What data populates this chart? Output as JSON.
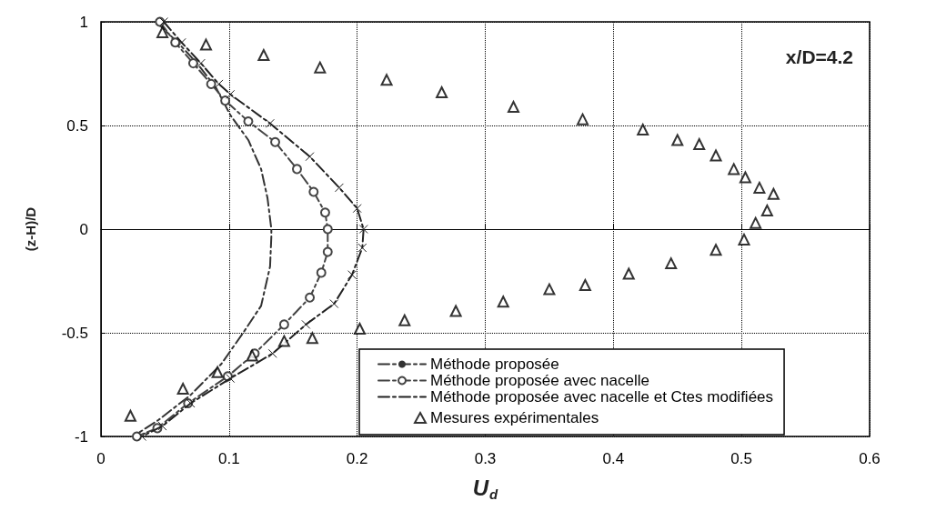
{
  "chart_data": {
    "type": "line",
    "xlabel": "U$_{d}$",
    "ylabel": "(z-H)/D",
    "annotations": [
      "x/D=4.2"
    ],
    "xlim": [
      0,
      0.6
    ],
    "xticks": [
      0,
      0.1,
      0.2,
      0.3,
      0.4,
      0.5,
      0.6
    ],
    "ylim": [
      -1,
      1
    ],
    "yticks": [
      -1,
      -0.5,
      0,
      0.5,
      1
    ],
    "grid": true,
    "legend": "bottom right",
    "series": [
      {
        "name": "Méthode proposée",
        "color": "#333333",
        "marker": "none",
        "line_style": "dashed",
        "x": [
          0.043,
          0.06,
          0.075,
          0.09,
          0.101,
          0.115,
          0.125,
          0.13,
          0.133,
          0.133,
          0.132,
          0.125,
          0.111,
          0.094,
          0.07,
          0.045,
          0.025
        ],
        "values": [
          1,
          0.9,
          0.8,
          0.68,
          0.55,
          0.43,
          0.29,
          0.15,
          0,
          -0.035,
          -0.18,
          -0.37,
          -0.5,
          -0.65,
          -0.8,
          -0.92,
          -1
        ]
      },
      {
        "name": "Méthode proposée avec nacelle",
        "color": "#444444",
        "marker": "circle",
        "line_style": "dashed",
        "x": [
          0.046,
          0.058,
          0.072,
          0.086,
          0.097,
          0.115,
          0.136,
          0.153,
          0.166,
          0.175,
          0.177,
          0.177,
          0.172,
          0.163,
          0.143,
          0.12,
          0.099,
          0.068,
          0.044,
          0.028
        ],
        "values": [
          1,
          0.9,
          0.8,
          0.7,
          0.62,
          0.52,
          0.42,
          0.29,
          0.18,
          0.08,
          0,
          -0.11,
          -0.21,
          -0.33,
          -0.46,
          -0.6,
          -0.71,
          -0.84,
          -0.96,
          -1
        ]
      },
      {
        "name": "Méthode proposée avec nacelle et Ctes modifiées",
        "color": "#222222",
        "marker": "cross",
        "line_style": "dashed",
        "x": [
          0.049,
          0.063,
          0.078,
          0.092,
          0.101,
          0.132,
          0.163,
          0.186,
          0.2,
          0.205,
          0.204,
          0.196,
          0.182,
          0.16,
          0.134,
          0.101,
          0.07,
          0.048,
          0.032
        ],
        "values": [
          1,
          0.9,
          0.8,
          0.7,
          0.65,
          0.51,
          0.35,
          0.2,
          0.1,
          0,
          -0.09,
          -0.22,
          -0.36,
          -0.46,
          -0.6,
          -0.72,
          -0.84,
          -0.95,
          -1
        ]
      },
      {
        "name": "Mesures expérimentales",
        "type": "scatter",
        "color": "#000000",
        "marker": "triangle",
        "x": [
          0.048,
          0.082,
          0.127,
          0.171,
          0.223,
          0.266,
          0.322,
          0.376,
          0.423,
          0.45,
          0.467,
          0.48,
          0.494,
          0.503,
          0.514,
          0.525,
          0.52,
          0.511,
          0.502,
          0.48,
          0.445,
          0.412,
          0.378,
          0.35,
          0.314,
          0.277,
          0.237,
          0.202,
          0.165,
          0.143,
          0.118,
          0.091,
          0.064,
          0.023
        ],
        "values": [
          0.95,
          0.89,
          0.84,
          0.78,
          0.72,
          0.66,
          0.59,
          0.53,
          0.48,
          0.43,
          0.41,
          0.355,
          0.29,
          0.25,
          0.2,
          0.17,
          0.09,
          0.03,
          -0.05,
          -0.1,
          -0.165,
          -0.215,
          -0.27,
          -0.29,
          -0.35,
          -0.395,
          -0.44,
          -0.48,
          -0.525,
          -0.54,
          -0.61,
          -0.69,
          -0.77,
          -0.9
        ]
      }
    ]
  }
}
